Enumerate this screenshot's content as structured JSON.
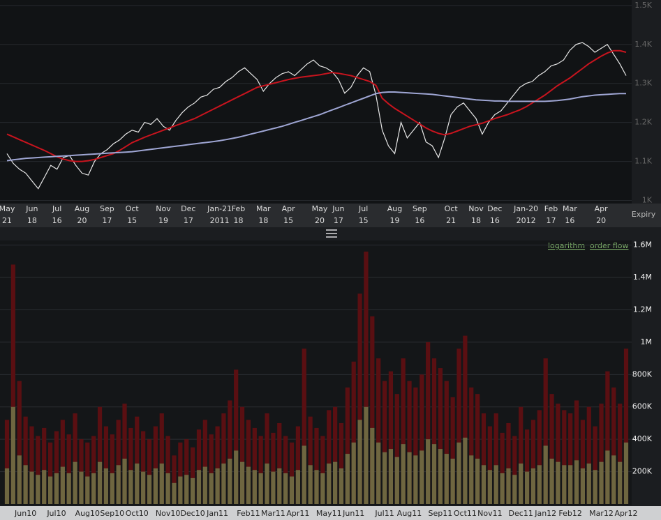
{
  "chart_data": [
    {
      "type": "line",
      "x_label": "Expiry",
      "categories": [
        "May",
        null,
        null,
        null,
        "Jun",
        null,
        null,
        null,
        "Jul",
        null,
        null,
        null,
        "Aug",
        null,
        null,
        null,
        "Sep",
        null,
        null,
        null,
        "Oct",
        null,
        null,
        null,
        null,
        "Nov",
        null,
        null,
        null,
        "Dec",
        null,
        null,
        null,
        null,
        "Jan-21",
        null,
        null,
        "Feb",
        null,
        null,
        null,
        "Mar",
        null,
        null,
        null,
        "Apr",
        null,
        null,
        null,
        null,
        "May",
        null,
        null,
        "Jun",
        null,
        null,
        null,
        "Jul",
        null,
        null,
        null,
        null,
        "Aug",
        null,
        null,
        null,
        "Sep",
        null,
        null,
        null,
        null,
        "Oct",
        null,
        null,
        null,
        "Nov",
        null,
        null,
        "Dec",
        null,
        null,
        null,
        null,
        "Jan-20",
        null,
        null,
        null,
        "Feb",
        null,
        null,
        "Mar",
        null,
        null,
        null,
        null,
        "Apr",
        null,
        null,
        null,
        null
      ],
      "category_sublabels": [
        "21",
        null,
        null,
        null,
        "18",
        null,
        null,
        null,
        "16",
        null,
        null,
        null,
        "20",
        null,
        null,
        null,
        "17",
        null,
        null,
        null,
        "15",
        null,
        null,
        null,
        null,
        "19",
        null,
        null,
        null,
        "17",
        null,
        null,
        null,
        null,
        "2011",
        null,
        null,
        "18",
        null,
        null,
        null,
        "18",
        null,
        null,
        null,
        "15",
        null,
        null,
        null,
        null,
        "20",
        null,
        null,
        "17",
        null,
        null,
        null,
        "15",
        null,
        null,
        null,
        null,
        "19",
        null,
        null,
        null,
        "16",
        null,
        null,
        null,
        null,
        "21",
        null,
        null,
        null,
        "18",
        null,
        null,
        "16",
        null,
        null,
        null,
        null,
        "2012",
        null,
        null,
        null,
        "17",
        null,
        null,
        "16",
        null,
        null,
        null,
        null,
        "20",
        null,
        null,
        null,
        null
      ],
      "series": [
        {
          "color": "#e8e8e8",
          "values": [
            1120,
            1095,
            1080,
            1070,
            1050,
            1030,
            1060,
            1090,
            1080,
            1110,
            1115,
            1090,
            1070,
            1065,
            1100,
            1120,
            1130,
            1145,
            1155,
            1170,
            1180,
            1175,
            1200,
            1195,
            1210,
            1190,
            1180,
            1205,
            1225,
            1240,
            1250,
            1265,
            1270,
            1285,
            1290,
            1305,
            1315,
            1330,
            1340,
            1325,
            1310,
            1280,
            1300,
            1315,
            1325,
            1330,
            1320,
            1335,
            1350,
            1360,
            1345,
            1340,
            1330,
            1310,
            1275,
            1290,
            1320,
            1340,
            1330,
            1270,
            1180,
            1140,
            1120,
            1200,
            1160,
            1180,
            1200,
            1150,
            1140,
            1110,
            1160,
            1220,
            1240,
            1250,
            1230,
            1210,
            1170,
            1200,
            1220,
            1230,
            1250,
            1270,
            1290,
            1300,
            1305,
            1320,
            1330,
            1345,
            1350,
            1360,
            1385,
            1400,
            1405,
            1395,
            1380,
            1390,
            1400,
            1375,
            1350,
            1320
          ]
        },
        {
          "color": "#c8141e",
          "values": [
            1170,
            1163,
            1156,
            1149,
            1142,
            1135,
            1128,
            1120,
            1112,
            1106,
            1102,
            1100,
            1100,
            1102,
            1105,
            1110,
            1115,
            1120,
            1128,
            1138,
            1148,
            1155,
            1162,
            1168,
            1174,
            1180,
            1186,
            1192,
            1198,
            1204,
            1210,
            1218,
            1226,
            1234,
            1242,
            1250,
            1258,
            1266,
            1274,
            1282,
            1290,
            1294,
            1298,
            1302,
            1306,
            1310,
            1313,
            1316,
            1318,
            1320,
            1322,
            1325,
            1328,
            1326,
            1323,
            1320,
            1315,
            1310,
            1305,
            1295,
            1262,
            1248,
            1236,
            1226,
            1216,
            1206,
            1196,
            1186,
            1178,
            1172,
            1168,
            1172,
            1178,
            1184,
            1190,
            1194,
            1198,
            1204,
            1210,
            1215,
            1220,
            1226,
            1232,
            1240,
            1250,
            1260,
            1270,
            1282,
            1294,
            1304,
            1314,
            1326,
            1338,
            1350,
            1360,
            1370,
            1378,
            1384,
            1384,
            1380
          ]
        },
        {
          "color": "#9fa6d4",
          "values": [
            1102,
            1104,
            1106,
            1108,
            1109,
            1110,
            1111,
            1112,
            1113,
            1114,
            1115,
            1116,
            1117,
            1118,
            1119,
            1120,
            1121,
            1122,
            1123,
            1124,
            1125,
            1127,
            1129,
            1131,
            1133,
            1135,
            1137,
            1139,
            1141,
            1143,
            1145,
            1147,
            1149,
            1151,
            1153,
            1156,
            1159,
            1162,
            1166,
            1170,
            1174,
            1178,
            1182,
            1186,
            1190,
            1195,
            1200,
            1205,
            1210,
            1215,
            1220,
            1226,
            1232,
            1238,
            1244,
            1250,
            1256,
            1262,
            1268,
            1274,
            1277,
            1278,
            1278,
            1277,
            1276,
            1275,
            1274,
            1273,
            1272,
            1270,
            1268,
            1266,
            1264,
            1262,
            1260,
            1258,
            1257,
            1256,
            1255,
            1255,
            1254,
            1254,
            1254,
            1254,
            1254,
            1254,
            1254,
            1255,
            1256,
            1258,
            1260,
            1263,
            1266,
            1268,
            1270,
            1271,
            1272,
            1273,
            1274,
            1274
          ]
        }
      ],
      "ylim": [
        992,
        1514
      ],
      "yticks": [
        {
          "value": 1500,
          "label": "1.5K"
        },
        {
          "value": 1400,
          "label": "1.4K"
        },
        {
          "value": 1300,
          "label": "1.3K"
        },
        {
          "value": 1200,
          "label": "1.2K"
        },
        {
          "value": 1100,
          "label": "1.1K"
        },
        {
          "value": 1000,
          "label": "1K"
        }
      ],
      "grid": true
    },
    {
      "type": "bar",
      "categories": [
        null,
        null,
        null,
        "Jun10",
        null,
        null,
        null,
        null,
        "Jul10",
        null,
        null,
        null,
        null,
        "Aug10",
        null,
        null,
        null,
        "Sep10",
        null,
        null,
        null,
        "Oct10",
        null,
        null,
        null,
        null,
        "Nov10",
        null,
        null,
        null,
        "Dec10",
        null,
        null,
        null,
        "Jan11",
        null,
        null,
        null,
        null,
        "Feb11",
        null,
        null,
        null,
        "Mar11",
        null,
        null,
        null,
        "Apr11",
        null,
        null,
        null,
        null,
        "May11",
        null,
        null,
        null,
        "Jun11",
        null,
        null,
        null,
        null,
        "Jul11",
        null,
        null,
        null,
        "Aug11",
        null,
        null,
        null,
        null,
        "Sep11",
        null,
        null,
        null,
        "Oct11",
        null,
        null,
        null,
        "Nov11",
        null,
        null,
        null,
        null,
        "Dec11",
        null,
        null,
        null,
        "Jan12",
        null,
        null,
        null,
        "Feb12",
        null,
        null,
        null,
        null,
        "Mar12",
        null,
        null,
        null,
        "Apr12"
      ],
      "series": [
        {
          "color": "#5a0f12",
          "values": [
            520000,
            1480000,
            760000,
            540000,
            480000,
            420000,
            470000,
            380000,
            450000,
            520000,
            430000,
            560000,
            400000,
            380000,
            420000,
            600000,
            480000,
            430000,
            520000,
            620000,
            470000,
            540000,
            450000,
            400000,
            480000,
            560000,
            420000,
            300000,
            380000,
            400000,
            350000,
            460000,
            520000,
            430000,
            480000,
            560000,
            640000,
            830000,
            600000,
            520000,
            470000,
            420000,
            560000,
            440000,
            500000,
            420000,
            380000,
            480000,
            960000,
            540000,
            470000,
            420000,
            580000,
            600000,
            500000,
            720000,
            880000,
            1300000,
            1560000,
            1160000,
            900000,
            760000,
            820000,
            680000,
            900000,
            760000,
            720000,
            800000,
            1000000,
            900000,
            840000,
            760000,
            660000,
            960000,
            1040000,
            720000,
            680000,
            560000,
            480000,
            560000,
            440000,
            500000,
            420000,
            600000,
            460000,
            520000,
            580000,
            900000,
            680000,
            620000,
            580000,
            560000,
            640000,
            520000,
            600000,
            480000,
            620000,
            820000,
            720000,
            620000,
            960000
          ]
        },
        {
          "color": "#6e6640",
          "values": [
            220000,
            600000,
            300000,
            240000,
            200000,
            180000,
            210000,
            170000,
            190000,
            230000,
            190000,
            260000,
            200000,
            170000,
            190000,
            260000,
            220000,
            190000,
            240000,
            280000,
            210000,
            250000,
            200000,
            180000,
            220000,
            250000,
            190000,
            130000,
            170000,
            180000,
            160000,
            210000,
            230000,
            190000,
            220000,
            250000,
            280000,
            330000,
            260000,
            230000,
            210000,
            190000,
            250000,
            200000,
            220000,
            190000,
            170000,
            210000,
            360000,
            240000,
            210000,
            190000,
            250000,
            260000,
            220000,
            310000,
            380000,
            520000,
            600000,
            470000,
            380000,
            320000,
            340000,
            290000,
            370000,
            320000,
            300000,
            330000,
            400000,
            370000,
            340000,
            310000,
            280000,
            380000,
            410000,
            300000,
            280000,
            240000,
            210000,
            240000,
            190000,
            220000,
            180000,
            250000,
            200000,
            220000,
            240000,
            360000,
            280000,
            260000,
            240000,
            240000,
            270000,
            220000,
            250000,
            210000,
            260000,
            330000,
            300000,
            260000,
            380000
          ]
        }
      ],
      "ylim": [
        0,
        1620000
      ],
      "yticks": [
        {
          "value": 1600000,
          "label": "1.6M"
        },
        {
          "value": 1400000,
          "label": "1.4M"
        },
        {
          "value": 1200000,
          "label": "1.2M"
        },
        {
          "value": 1000000,
          "label": "1M"
        },
        {
          "value": 800000,
          "label": "800K"
        },
        {
          "value": 600000,
          "label": "600K"
        },
        {
          "value": 400000,
          "label": "400K"
        },
        {
          "value": 200000,
          "label": "200K"
        }
      ],
      "grid": true
    }
  ],
  "controls": {
    "links": [
      "logarithm",
      "order flow"
    ]
  }
}
